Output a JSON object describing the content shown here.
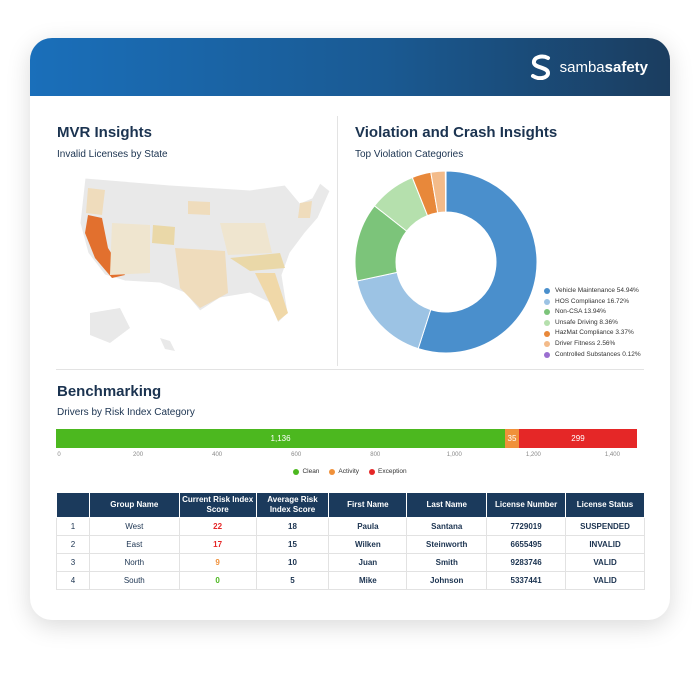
{
  "brand": {
    "name_light": "samba",
    "name_bold": "safety"
  },
  "mvr": {
    "title": "MVR Insights",
    "subtitle": "Invalid Licenses by State"
  },
  "violation": {
    "title": "Violation and Crash Insights",
    "subtitle": "Top Violation Categories",
    "slices": [
      {
        "label": "Vehicle Maintenance 54.94%",
        "value": 54.94,
        "color": "#4a8fcc"
      },
      {
        "label": "HOS Compliance 16.72%",
        "value": 16.72,
        "color": "#9cc3e4"
      },
      {
        "label": "Non-CSA 13.94%",
        "value": 13.94,
        "color": "#7cc47a"
      },
      {
        "label": "Unsafe Driving 8.36%",
        "value": 8.36,
        "color": "#b5e0ad"
      },
      {
        "label": "HazMat Compliance 3.37%",
        "value": 3.37,
        "color": "#e8883a"
      },
      {
        "label": "Driver Fitness 2.56%",
        "value": 2.56,
        "color": "#f3bb8a"
      },
      {
        "label": "Controlled Substances 0.12%",
        "value": 0.12,
        "color": "#9b6fd0"
      }
    ]
  },
  "bench": {
    "title": "Benchmarking",
    "subtitle": "Drivers by Risk Index Category",
    "axis_max": 1490,
    "segments": [
      {
        "label": "1,136",
        "value": 1136,
        "name": "Clean",
        "color": "#4cb81f"
      },
      {
        "label": "35",
        "value": 35,
        "name": "Activity",
        "color": "#f0913a"
      },
      {
        "label": "299",
        "value": 299,
        "name": "Exception",
        "color": "#e52727"
      }
    ],
    "ticks": [
      "0",
      "200",
      "400",
      "600",
      "800",
      "1,000",
      "1,200",
      "1,400"
    ],
    "tick_values": [
      0,
      200,
      400,
      600,
      800,
      1000,
      1200,
      1400
    ]
  },
  "table": {
    "headers": [
      "",
      "Group Name",
      "Current Risk Index Score",
      "Average Risk Index Score",
      "First Name",
      "Last Name",
      "License Number",
      "License Status"
    ],
    "rows": [
      [
        "1",
        "West",
        "22",
        "18",
        "Paula",
        "Santana",
        "7729019",
        "SUSPENDED"
      ],
      [
        "2",
        "East",
        "17",
        "15",
        "Wilken",
        "Steinworth",
        "6655495",
        "INVALID"
      ],
      [
        "3",
        "North",
        "9",
        "10",
        "Juan",
        "Smith",
        "9283746",
        "VALID"
      ],
      [
        "4",
        "South",
        "0",
        "5",
        "Mike",
        "Johnson",
        "5337441",
        "VALID"
      ]
    ],
    "score_colors": [
      "#e52727",
      "#e52727",
      "#f0913a",
      "#4cb81f"
    ]
  }
}
